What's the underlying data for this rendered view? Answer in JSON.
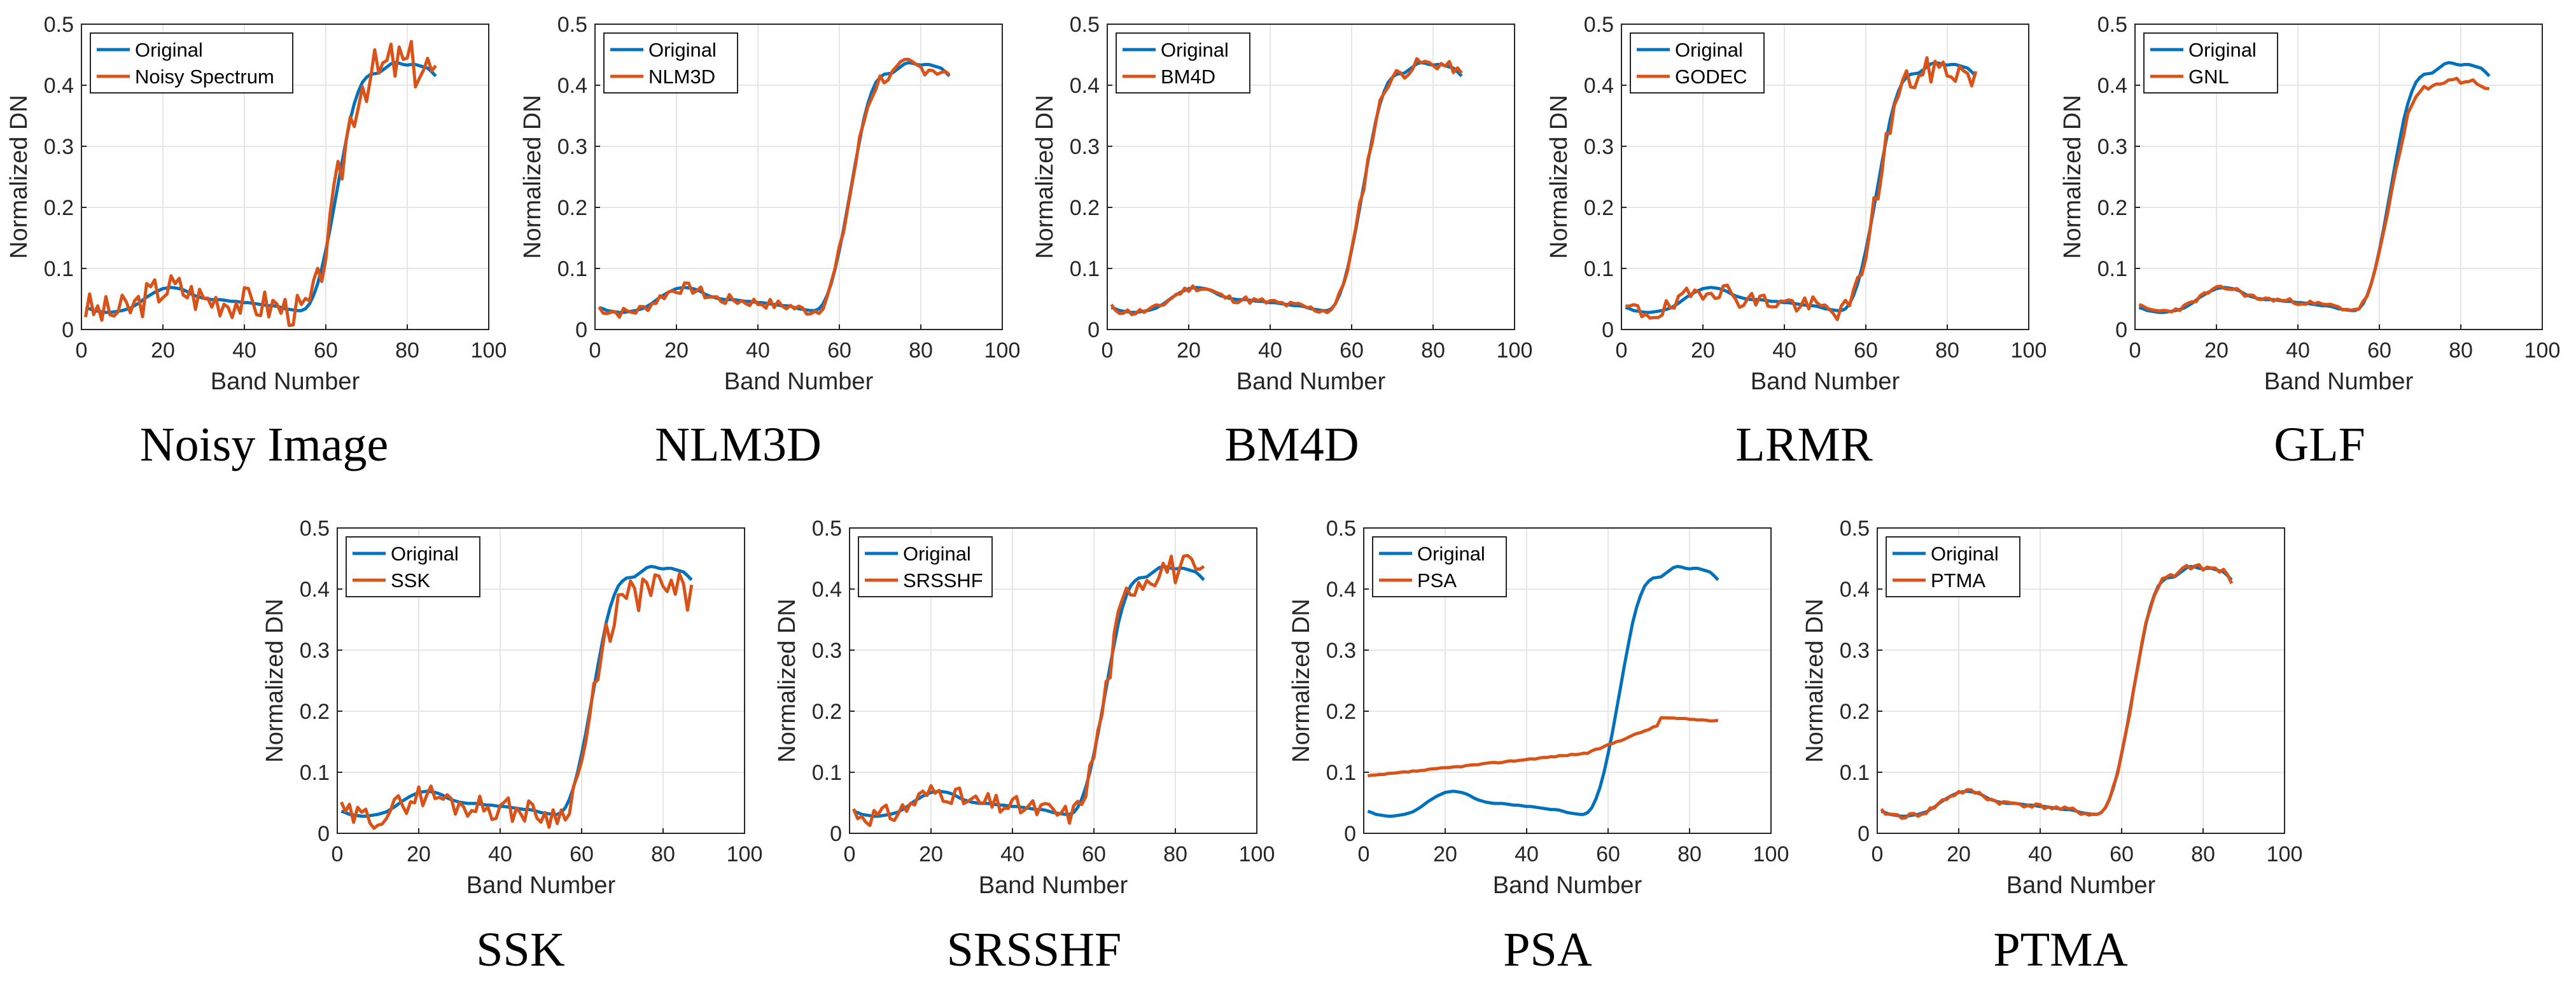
{
  "colors": {
    "original": "#0072BD",
    "estimate": "#D95319",
    "grid": "#e6e6e6",
    "axis": "#262626"
  },
  "original_curve": [
    0.036,
    0.034,
    0.031,
    0.03,
    0.029,
    0.028,
    0.028,
    0.029,
    0.03,
    0.031,
    0.033,
    0.035,
    0.039,
    0.043,
    0.048,
    0.053,
    0.057,
    0.061,
    0.064,
    0.067,
    0.068,
    0.069,
    0.068,
    0.067,
    0.065,
    0.062,
    0.058,
    0.055,
    0.053,
    0.051,
    0.05,
    0.049,
    0.049,
    0.049,
    0.048,
    0.047,
    0.046,
    0.046,
    0.045,
    0.044,
    0.044,
    0.043,
    0.042,
    0.041,
    0.04,
    0.039,
    0.039,
    0.038,
    0.036,
    0.034,
    0.033,
    0.032,
    0.031,
    0.031,
    0.034,
    0.042,
    0.056,
    0.075,
    0.1,
    0.13,
    0.163,
    0.2,
    0.237,
    0.275,
    0.31,
    0.344,
    0.37,
    0.39,
    0.405,
    0.413,
    0.418,
    0.419,
    0.42,
    0.425,
    0.43,
    0.435,
    0.437,
    0.436,
    0.434,
    0.433,
    0.434,
    0.434,
    0.432,
    0.43,
    0.428,
    0.422,
    0.415
  ],
  "chart_data": [
    {
      "type": "line",
      "caption": "Noisy Image",
      "xlabel": "Band Number",
      "ylabel": "Normalized DN",
      "xlim": [
        0,
        100
      ],
      "ylim": [
        0,
        0.5
      ],
      "xticks": [
        "0",
        "20",
        "40",
        "60",
        "80",
        "100"
      ],
      "yticks": [
        "0",
        "0.1",
        "0.2",
        "0.3",
        "0.4",
        "0.5"
      ],
      "legend": [
        "Original",
        "Noisy Spectrum"
      ],
      "series": [
        {
          "name": "Original",
          "values": "original_curve"
        },
        {
          "name": "Noisy Spectrum",
          "noise": 0.028,
          "scale": 1.0,
          "offset": 0,
          "seed": 3
        }
      ]
    },
    {
      "type": "line",
      "caption": "NLM3D",
      "xlabel": "Band Number",
      "ylabel": "Normalized DN",
      "xlim": [
        0,
        100
      ],
      "ylim": [
        0,
        0.5
      ],
      "xticks": [
        "0",
        "20",
        "40",
        "60",
        "80",
        "100"
      ],
      "yticks": [
        "0",
        "0.1",
        "0.2",
        "0.3",
        "0.4",
        "0.5"
      ],
      "legend": [
        "Original",
        "NLM3D"
      ],
      "series": [
        {
          "name": "Original",
          "values": "original_curve"
        },
        {
          "name": "NLM3D",
          "noise": 0.009,
          "scale": 0.99,
          "offset": 0,
          "seed": 7
        }
      ]
    },
    {
      "type": "line",
      "caption": "BM4D",
      "xlabel": "Band Number",
      "ylabel": "Normalized DN",
      "xlim": [
        0,
        100
      ],
      "ylim": [
        0,
        0.5
      ],
      "xticks": [
        "0",
        "20",
        "40",
        "60",
        "80",
        "100"
      ],
      "yticks": [
        "0",
        "0.1",
        "0.2",
        "0.3",
        "0.4",
        "0.5"
      ],
      "legend": [
        "Original",
        "BM4D"
      ],
      "series": [
        {
          "name": "Original",
          "values": "original_curve"
        },
        {
          "name": "BM4D",
          "noise": 0.006,
          "scale": 1.0,
          "offset": 0,
          "seed": 11
        }
      ]
    },
    {
      "type": "line",
      "caption": "LRMR",
      "xlabel": "Band Number",
      "ylabel": "Normalized DN",
      "xlim": [
        0,
        100
      ],
      "ylim": [
        0,
        0.5
      ],
      "xticks": [
        "0",
        "20",
        "40",
        "60",
        "80",
        "100"
      ],
      "yticks": [
        "0",
        "0.1",
        "0.2",
        "0.3",
        "0.4",
        "0.5"
      ],
      "legend": [
        "Original",
        "GODEC"
      ],
      "series": [
        {
          "name": "Original",
          "values": "original_curve"
        },
        {
          "name": "GODEC",
          "noise": 0.016,
          "scale": 0.98,
          "offset": 0,
          "seed": 19
        }
      ]
    },
    {
      "type": "line",
      "caption": "GLF",
      "xlabel": "Band Number",
      "ylabel": "Normalized DN",
      "xlim": [
        0,
        100
      ],
      "ylim": [
        0,
        0.5
      ],
      "xticks": [
        "0",
        "20",
        "40",
        "60",
        "80",
        "100"
      ],
      "yticks": [
        "0",
        "0.1",
        "0.2",
        "0.3",
        "0.4",
        "0.5"
      ],
      "legend": [
        "Original",
        "GNL"
      ],
      "series": [
        {
          "name": "Original",
          "values": "original_curve"
        },
        {
          "name": "GNL",
          "noise": 0.004,
          "scale": 0.93,
          "offset": 0.004,
          "seed": 23
        }
      ]
    },
    {
      "type": "line",
      "caption": "SSK",
      "xlabel": "Band Number",
      "ylabel": "Normalized DN",
      "xlim": [
        0,
        100
      ],
      "ylim": [
        0,
        0.5
      ],
      "xticks": [
        "0",
        "20",
        "40",
        "60",
        "80",
        "100"
      ],
      "yticks": [
        "0",
        "0.1",
        "0.2",
        "0.3",
        "0.4",
        "0.5"
      ],
      "legend": [
        "Original",
        "SSK"
      ],
      "series": [
        {
          "name": "Original",
          "values": "original_curve"
        },
        {
          "name": "SSK",
          "noise": 0.02,
          "scale": 0.92,
          "offset": 0,
          "seed": 29
        }
      ]
    },
    {
      "type": "line",
      "caption": "SRSSHF",
      "xlabel": "Band Number",
      "ylabel": "Normalized DN",
      "xlim": [
        0,
        100
      ],
      "ylim": [
        0,
        0.5
      ],
      "xticks": [
        "0",
        "20",
        "40",
        "60",
        "80",
        "100"
      ],
      "yticks": [
        "0",
        "0.1",
        "0.2",
        "0.3",
        "0.4",
        "0.5"
      ],
      "legend": [
        "Original",
        "SRSSHF"
      ],
      "series": [
        {
          "name": "Original",
          "values": "original_curve"
        },
        {
          "name": "SRSSHF",
          "noise": 0.017,
          "scale": 1.0,
          "offset": 0,
          "seed": 31
        }
      ]
    },
    {
      "type": "line",
      "caption": "PSA",
      "xlabel": "Band Number",
      "ylabel": "Normalized DN",
      "xlim": [
        0,
        100
      ],
      "ylim": [
        0,
        0.5
      ],
      "xticks": [
        "0",
        "20",
        "40",
        "60",
        "80",
        "100"
      ],
      "yticks": [
        "0",
        "0.1",
        "0.2",
        "0.3",
        "0.4",
        "0.5"
      ],
      "legend": [
        "Original",
        "PSA"
      ],
      "series": [
        {
          "name": "Original",
          "values": "original_curve"
        },
        {
          "name": "PSA",
          "noise": 0.002,
          "curve": "psa",
          "seed": 37
        }
      ]
    },
    {
      "type": "line",
      "caption": "PTMA",
      "xlabel": "Band Number",
      "ylabel": "Normalized DN",
      "xlim": [
        0,
        100
      ],
      "ylim": [
        0,
        0.5
      ],
      "xticks": [
        "0",
        "20",
        "40",
        "60",
        "80",
        "100"
      ],
      "yticks": [
        "0",
        "0.1",
        "0.2",
        "0.3",
        "0.4",
        "0.5"
      ],
      "legend": [
        "Original",
        "PTMA"
      ],
      "series": [
        {
          "name": "Original",
          "values": "original_curve"
        },
        {
          "name": "PTMA",
          "noise": 0.004,
          "scale": 1.0,
          "offset": 0,
          "seed": 41
        }
      ]
    }
  ]
}
